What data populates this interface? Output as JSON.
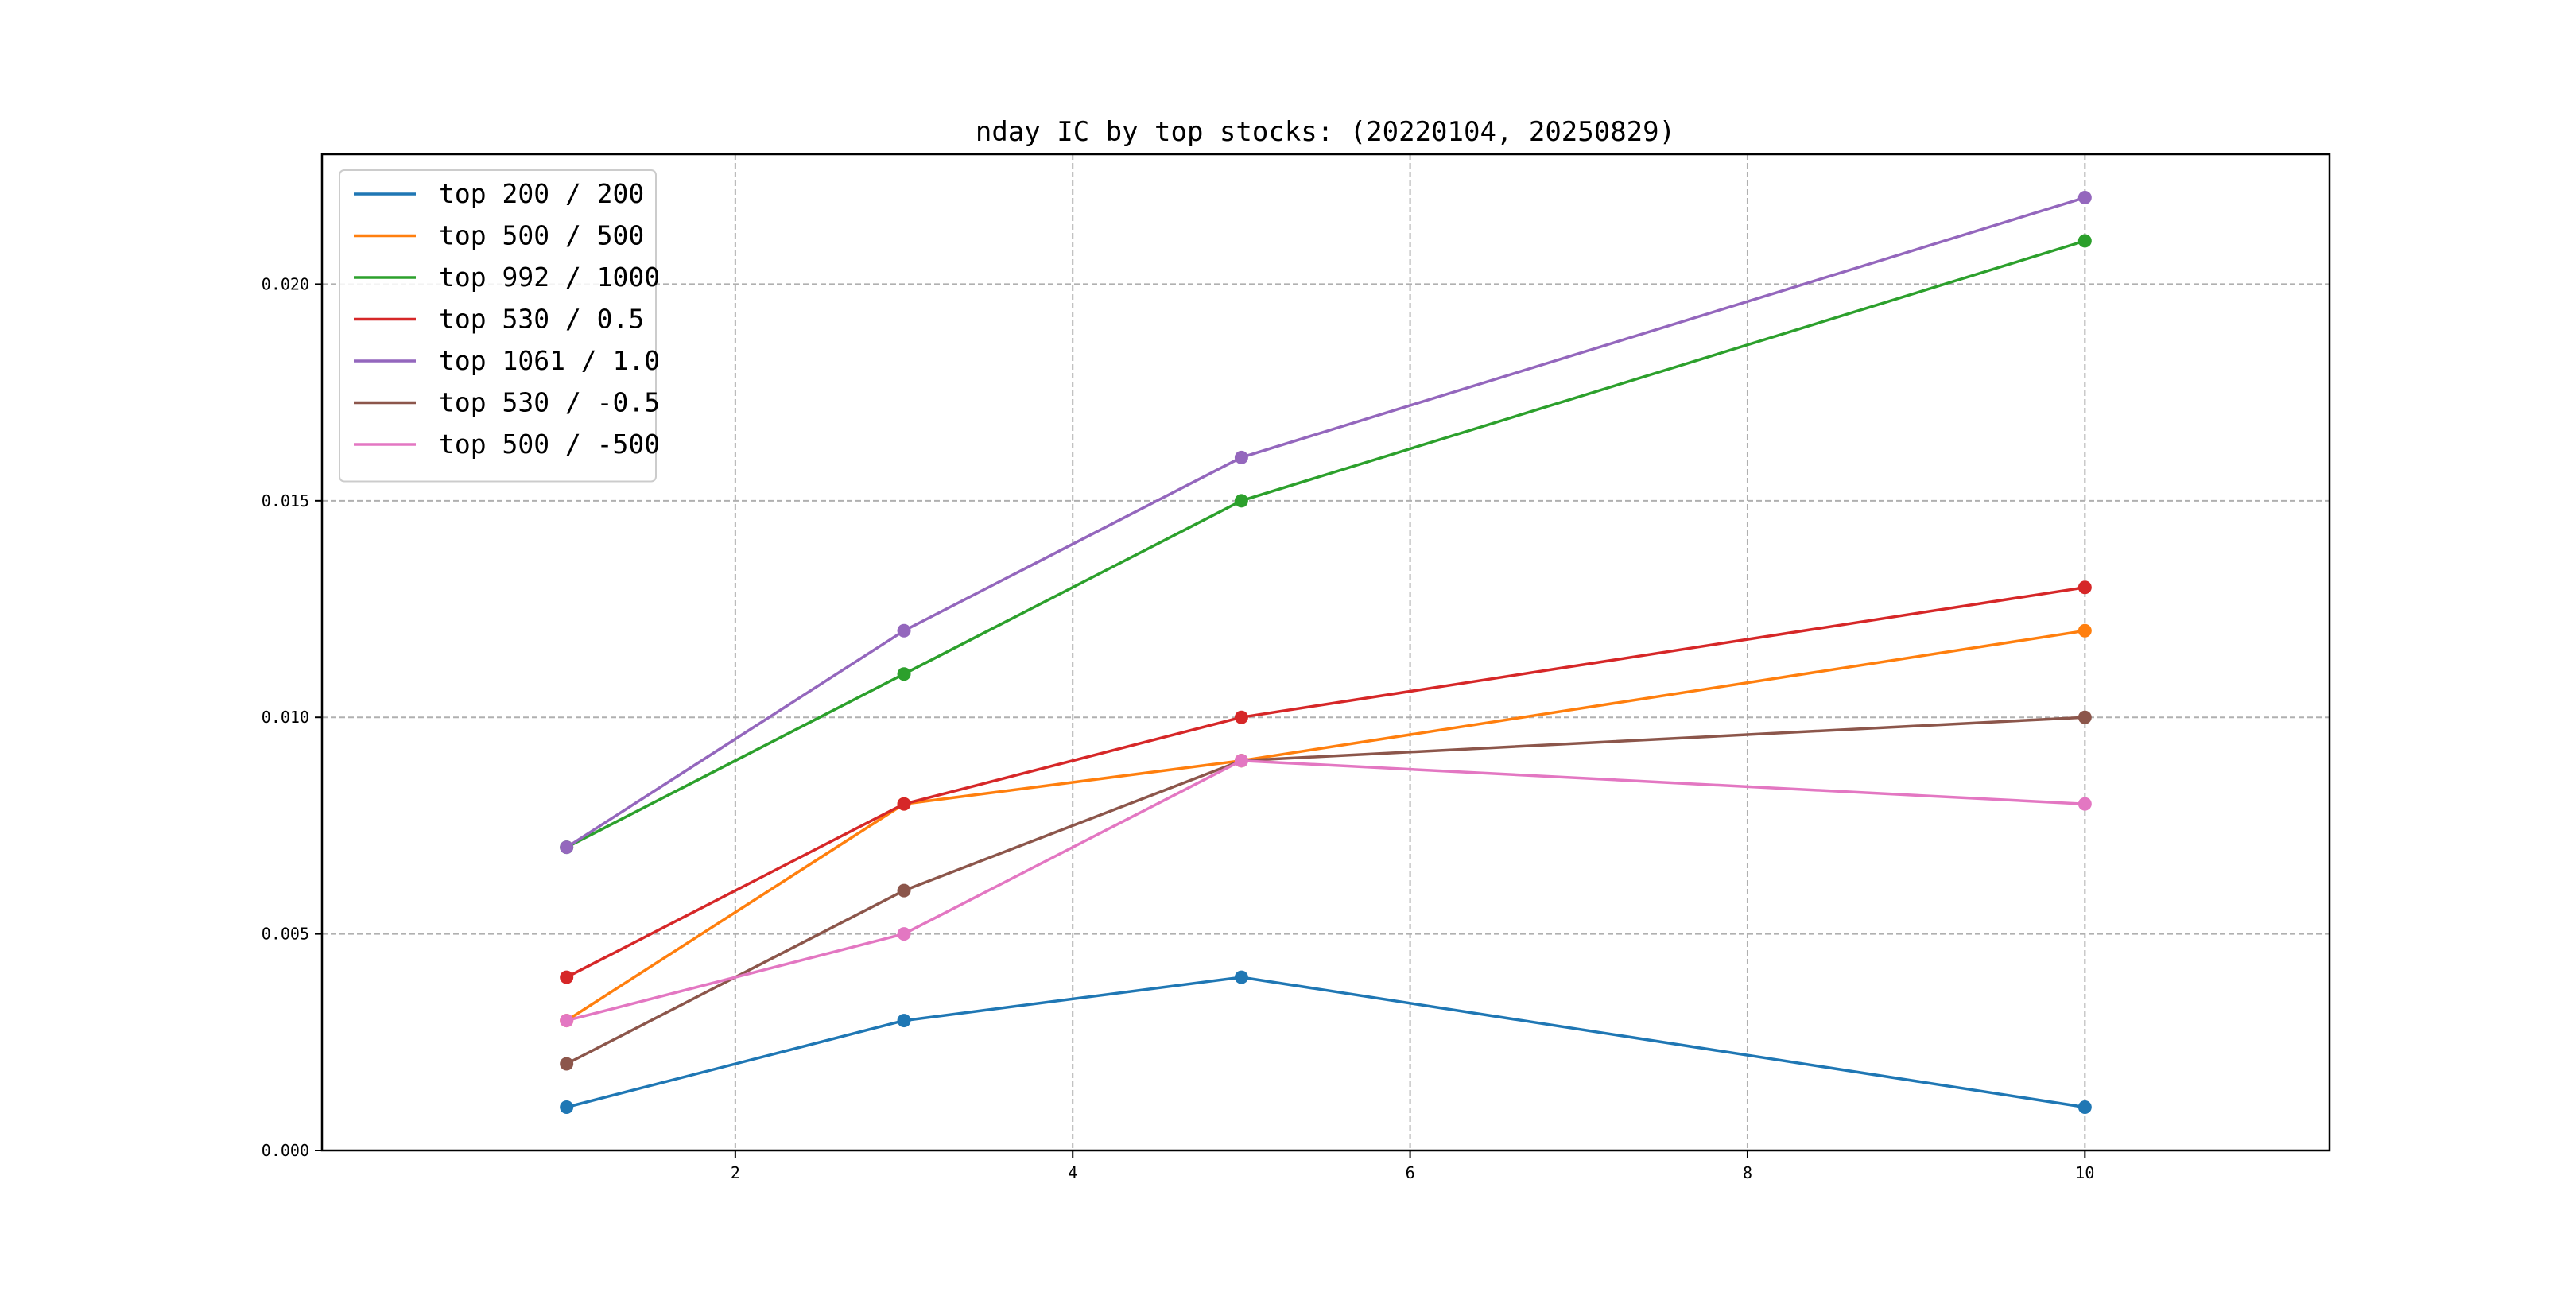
{
  "chart_data": {
    "type": "line",
    "title": "nday IC by top stocks: (20220104, 20250829)",
    "xlabel": "",
    "ylabel": "",
    "x": [
      1,
      3,
      5,
      10
    ],
    "xlim": [
      -0.45,
      11.45
    ],
    "ylim": [
      0,
      0.023
    ],
    "xticks": [
      2,
      4,
      6,
      8,
      10
    ],
    "xtick_labels": [
      "2",
      "4",
      "6",
      "8",
      "10"
    ],
    "yticks": [
      0,
      0.005,
      0.01,
      0.015,
      0.02
    ],
    "ytick_labels": [
      "0.000",
      "0.005",
      "0.010",
      "0.015",
      "0.020"
    ],
    "grid": true,
    "legend_position": "top-left",
    "series": [
      {
        "name": "top 200 / 200",
        "color": "#1f77b4",
        "values": [
          0.001,
          0.003,
          0.004,
          0.001
        ]
      },
      {
        "name": "top 500 / 500",
        "color": "#ff7f0e",
        "values": [
          0.003,
          0.008,
          0.009,
          0.012
        ]
      },
      {
        "name": "top 992 / 1000",
        "color": "#2ca02c",
        "values": [
          0.007,
          0.011,
          0.015,
          0.021
        ]
      },
      {
        "name": "top 530 / 0.5",
        "color": "#d62728",
        "values": [
          0.004,
          0.008,
          0.01,
          0.013
        ]
      },
      {
        "name": "top 1061 / 1.0",
        "color": "#9467bd",
        "values": [
          0.007,
          0.012,
          0.016,
          0.022
        ]
      },
      {
        "name": "top 530 / -0.5",
        "color": "#8c564b",
        "values": [
          0.002,
          0.006,
          0.009,
          0.01
        ]
      },
      {
        "name": "top 500 / -500",
        "color": "#e377c2",
        "values": [
          0.003,
          0.005,
          0.009,
          0.008
        ]
      }
    ]
  }
}
